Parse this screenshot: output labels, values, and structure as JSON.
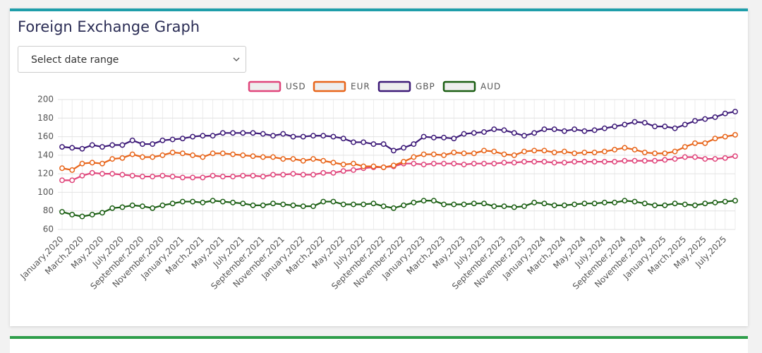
{
  "title": "Foreign Exchange Graph",
  "date_select": {
    "placeholder": "Select date range"
  },
  "chart_data": {
    "type": "line",
    "categories": [
      "January,2020",
      null,
      "March,2020",
      null,
      "May,2020",
      null,
      "July,2020",
      null,
      "September,2020",
      null,
      "November,2020",
      null,
      "January,2021",
      null,
      "March,2021",
      null,
      "May,2021",
      null,
      "July,2021",
      null,
      "September,2021",
      null,
      "November,2021",
      null,
      "January,2022",
      null,
      "March,2022",
      null,
      "May,2022",
      null,
      "July,2022",
      null,
      "September,2022",
      null,
      "November,2022",
      null,
      "January,2023",
      null,
      "March,2023",
      null,
      "May,2023",
      null,
      "July,2023",
      null,
      "September,2023",
      null,
      "November,2023",
      null,
      "January,2024",
      null,
      "March,2024",
      null,
      "May,2024",
      null,
      "July,2024",
      null,
      "September,2024",
      null,
      "November,2024",
      null,
      "January,2025",
      null,
      "March,2025",
      null,
      "May,2025",
      null,
      "July,2025",
      null
    ],
    "series": [
      {
        "name": "USD",
        "color": "#e0457b",
        "values": [
          113,
          113,
          118,
          121,
          120,
          120,
          119,
          118,
          117,
          117,
          118,
          117,
          116,
          116,
          116,
          118,
          117,
          117,
          118,
          118,
          117,
          119,
          119,
          120,
          119,
          119,
          121,
          121,
          123,
          124,
          126,
          127,
          127,
          128,
          131,
          131,
          130,
          131,
          131,
          131,
          130,
          131,
          131,
          131,
          132,
          132,
          133,
          133,
          133,
          132,
          132,
          133,
          133,
          133,
          133,
          133,
          134,
          134,
          134,
          134,
          135,
          136,
          138,
          138,
          136,
          136,
          137,
          139
        ]
      },
      {
        "name": "EUR",
        "color": "#e8651a",
        "values": [
          126,
          124,
          131,
          132,
          131,
          136,
          137,
          141,
          138,
          138,
          140,
          143,
          142,
          140,
          138,
          142,
          142,
          141,
          140,
          139,
          138,
          138,
          136,
          136,
          134,
          136,
          134,
          132,
          130,
          131,
          128,
          128,
          127,
          129,
          133,
          138,
          141,
          141,
          140,
          143,
          142,
          142,
          145,
          144,
          141,
          140,
          144,
          145,
          145,
          143,
          144,
          142,
          143,
          143,
          144,
          146,
          148,
          146,
          143,
          142,
          142,
          144,
          149,
          153,
          153,
          158,
          160,
          162
        ]
      },
      {
        "name": "GBP",
        "color": "#3d1a78",
        "values": [
          149,
          148,
          147,
          151,
          149,
          151,
          151,
          156,
          152,
          152,
          156,
          157,
          158,
          160,
          161,
          161,
          164,
          164,
          164,
          164,
          163,
          161,
          163,
          160,
          160,
          161,
          161,
          160,
          158,
          154,
          154,
          152,
          152,
          145,
          148,
          152,
          160,
          159,
          159,
          158,
          163,
          164,
          165,
          168,
          167,
          164,
          161,
          164,
          168,
          168,
          166,
          168,
          166,
          167,
          169,
          171,
          173,
          176,
          175,
          171,
          171,
          169,
          173,
          177,
          179,
          181,
          185,
          187
        ]
      },
      {
        "name": "AUD",
        "color": "#1a5e12",
        "values": [
          79,
          76,
          74,
          76,
          78,
          83,
          84,
          86,
          85,
          83,
          86,
          88,
          90,
          90,
          89,
          91,
          90,
          89,
          88,
          86,
          86,
          88,
          87,
          86,
          85,
          85,
          90,
          90,
          87,
          87,
          87,
          88,
          85,
          83,
          86,
          89,
          91,
          91,
          87,
          87,
          87,
          88,
          88,
          85,
          85,
          84,
          85,
          89,
          88,
          86,
          86,
          87,
          88,
          88,
          89,
          89,
          91,
          90,
          88,
          86,
          86,
          88,
          87,
          86,
          88,
          89,
          90,
          91
        ]
      }
    ],
    "ylim": [
      60,
      200
    ],
    "yticks": [
      60,
      80,
      100,
      120,
      140,
      160,
      180,
      200
    ],
    "grid": true,
    "legend": "top"
  }
}
